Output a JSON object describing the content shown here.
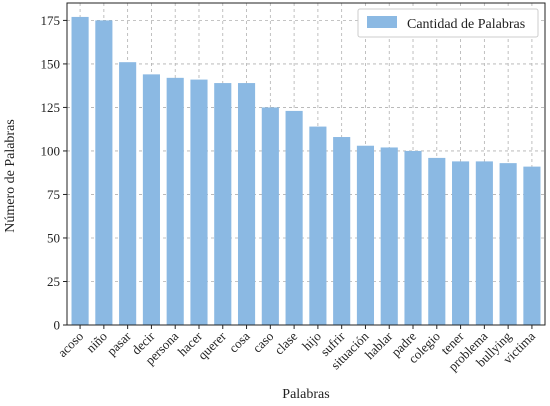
{
  "chart_data": {
    "type": "bar",
    "categories": [
      "acoso",
      "niño",
      "pasar",
      "decir",
      "persona",
      "hacer",
      "querer",
      "cosa",
      "caso",
      "clase",
      "hijo",
      "sufrir",
      "situación",
      "hablar",
      "padre",
      "colegio",
      "tener",
      "problema",
      "bullying",
      "victima"
    ],
    "series": [
      {
        "name": "Cantidad de Palabras",
        "values": [
          177,
          175,
          151,
          144,
          142,
          141,
          139,
          139,
          125,
          123,
          114,
          108,
          103,
          102,
          100,
          96,
          94,
          94,
          93,
          91
        ],
        "color": "#8bb9e3"
      }
    ],
    "xlabel": "Palabras",
    "ylabel": "Número de Palabras",
    "ylim": [
      0,
      185
    ],
    "yticks": [
      0,
      25,
      50,
      75,
      100,
      125,
      150,
      175
    ],
    "grid": true,
    "legend_position": "top-right"
  }
}
